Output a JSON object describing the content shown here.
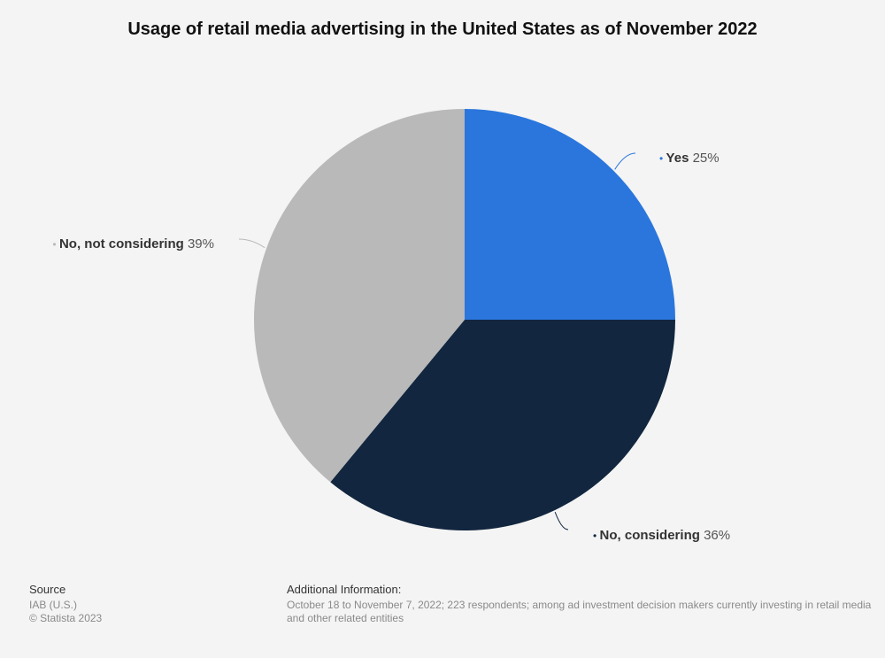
{
  "title": "Usage of retail media advertising in the United States as of November 2022",
  "chart_data": {
    "type": "pie",
    "slices": [
      {
        "label": "Yes",
        "value": 25,
        "value_label": "25%",
        "color": "#2a76dd"
      },
      {
        "label": "No, considering",
        "value": 36,
        "value_label": "36%",
        "color": "#12263f"
      },
      {
        "label": "No, not considering",
        "value": 39,
        "value_label": "39%",
        "color": "#b9b9b9"
      }
    ]
  },
  "footer": {
    "source_heading": "Source",
    "source_lines": [
      "IAB (U.S.)",
      "© Statista 2023"
    ],
    "info_heading": "Additional Information:",
    "info_lines": [
      "October 18 to November 7, 2022; 223 respondents; among ad investment decision makers currently investing in retail media",
      "and other related entities"
    ]
  }
}
